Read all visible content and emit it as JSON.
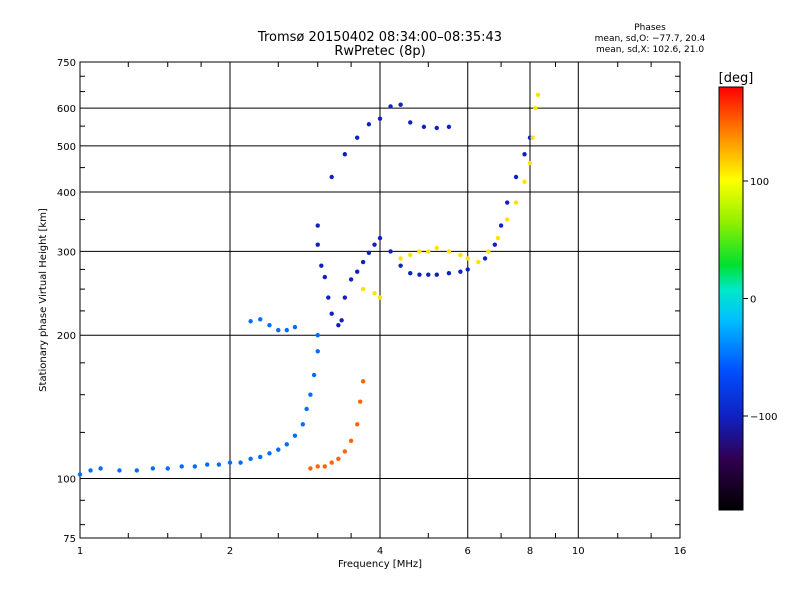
{
  "header": {
    "title_line1": "Tromsø 20150402 08:34:00–08:35:43",
    "title_line2": "RwPretec (8p)",
    "phase_title": "Phases",
    "phase_line1": "mean, sd,O: −77.7, 20.4",
    "phase_line2": "mean, sd,X: 102.6, 21.0"
  },
  "colorbar": {
    "label": "[deg]",
    "ticks": [
      "100",
      "0",
      "−100"
    ],
    "tick_values": [
      100,
      0,
      -100
    ],
    "range": [
      -180,
      180
    ]
  },
  "colors": {
    "grid": "#000000",
    "background": "#ffffff"
  },
  "chart_data": {
    "type": "scatter",
    "title": "Tromsø 20150402 08:34:00–08:35:43",
    "subtitle": "RwPretec (8p)",
    "xlabel": "Frequency [MHz]",
    "ylabel": "Stationary phase Virtual Height [km]",
    "x_scale": "log",
    "y_scale": "log",
    "xlim": [
      1,
      16
    ],
    "ylim": [
      75,
      750
    ],
    "x_ticks": [
      1,
      2,
      4,
      6,
      8,
      10,
      16
    ],
    "x_tick_labels": [
      "1",
      "2",
      "4",
      "6",
      "8",
      "10",
      "16"
    ],
    "y_ticks": [
      75,
      100,
      200,
      300,
      400,
      500,
      600,
      750
    ],
    "y_tick_labels": [
      "75",
      "100",
      "200",
      "300",
      "400",
      "500",
      "600",
      "750"
    ],
    "grid": true,
    "color_by": "phase",
    "series": [
      {
        "name": "",
        "phase": -50,
        "points": [
          [
            1.0,
            102
          ],
          [
            1.05,
            104
          ],
          [
            1.1,
            105
          ],
          [
            1.2,
            104
          ],
          [
            1.3,
            104
          ],
          [
            1.4,
            105
          ],
          [
            1.5,
            105
          ],
          [
            1.6,
            106
          ],
          [
            1.7,
            106
          ],
          [
            1.8,
            107
          ],
          [
            1.9,
            107
          ],
          [
            2.0,
            108
          ],
          [
            2.1,
            108
          ],
          [
            2.2,
            110
          ],
          [
            2.3,
            111
          ],
          [
            2.4,
            113
          ],
          [
            2.5,
            115
          ],
          [
            2.6,
            118
          ],
          [
            2.7,
            123
          ],
          [
            2.8,
            130
          ],
          [
            2.85,
            140
          ],
          [
            2.9,
            150
          ],
          [
            2.95,
            165
          ],
          [
            3.0,
            185
          ],
          [
            3.0,
            200
          ],
          [
            2.5,
            205
          ],
          [
            2.4,
            210
          ],
          [
            2.3,
            216
          ],
          [
            2.2,
            214
          ],
          [
            2.6,
            205
          ],
          [
            2.7,
            208
          ]
        ]
      },
      {
        "name": "",
        "phase": -100,
        "points": [
          [
            3.0,
            340
          ],
          [
            3.0,
            310
          ],
          [
            3.05,
            280
          ],
          [
            3.1,
            265
          ],
          [
            3.15,
            240
          ],
          [
            3.2,
            222
          ],
          [
            3.3,
            210
          ],
          [
            3.35,
            215
          ],
          [
            3.4,
            240
          ],
          [
            3.5,
            262
          ],
          [
            3.6,
            272
          ],
          [
            3.7,
            285
          ],
          [
            3.8,
            298
          ],
          [
            3.9,
            310
          ],
          [
            4.0,
            320
          ],
          [
            4.2,
            300
          ],
          [
            4.4,
            280
          ],
          [
            4.6,
            270
          ],
          [
            4.8,
            268
          ],
          [
            5.0,
            268
          ],
          [
            5.2,
            268
          ],
          [
            5.5,
            270
          ],
          [
            5.8,
            272
          ],
          [
            6.0,
            275
          ],
          [
            6.5,
            290
          ],
          [
            6.8,
            310
          ],
          [
            7.0,
            340
          ],
          [
            7.2,
            380
          ],
          [
            7.5,
            430
          ],
          [
            7.8,
            480
          ],
          [
            8.0,
            520
          ],
          [
            3.2,
            430
          ],
          [
            3.4,
            480
          ],
          [
            3.6,
            520
          ],
          [
            3.8,
            555
          ],
          [
            4.0,
            570
          ],
          [
            4.2,
            605
          ],
          [
            4.4,
            610
          ],
          [
            4.6,
            560
          ],
          [
            4.9,
            548
          ],
          [
            5.2,
            545
          ],
          [
            5.5,
            548
          ]
        ]
      },
      {
        "name": "",
        "phase": 110,
        "points": [
          [
            3.7,
            250
          ],
          [
            3.9,
            245
          ],
          [
            4.0,
            240
          ],
          [
            4.4,
            290
          ],
          [
            4.6,
            295
          ],
          [
            4.8,
            300
          ],
          [
            5.0,
            300
          ],
          [
            5.2,
            305
          ],
          [
            5.5,
            300
          ],
          [
            5.8,
            295
          ],
          [
            6.0,
            290
          ],
          [
            6.3,
            285
          ],
          [
            6.6,
            300
          ],
          [
            6.9,
            320
          ],
          [
            7.2,
            350
          ],
          [
            7.5,
            380
          ],
          [
            7.8,
            420
          ],
          [
            8.0,
            460
          ],
          [
            8.1,
            520
          ],
          [
            8.2,
            600
          ],
          [
            8.3,
            640
          ]
        ]
      },
      {
        "name": "",
        "phase": 150,
        "points": [
          [
            2.9,
            105
          ],
          [
            3.0,
            106
          ],
          [
            3.1,
            106
          ],
          [
            3.2,
            108
          ],
          [
            3.3,
            110
          ],
          [
            3.4,
            114
          ],
          [
            3.5,
            120
          ],
          [
            3.6,
            130
          ],
          [
            3.65,
            145
          ],
          [
            3.7,
            160
          ]
        ]
      }
    ]
  }
}
